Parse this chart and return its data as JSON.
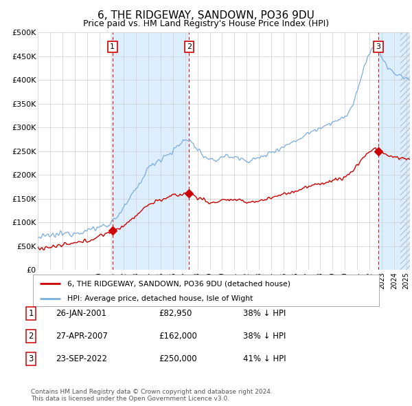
{
  "title": "6, THE RIDGEWAY, SANDOWN, PO36 9DU",
  "subtitle": "Price paid vs. HM Land Registry's House Price Index (HPI)",
  "ylabel_ticks": [
    "£0",
    "£50K",
    "£100K",
    "£150K",
    "£200K",
    "£250K",
    "£300K",
    "£350K",
    "£400K",
    "£450K",
    "£500K"
  ],
  "ytick_values": [
    0,
    50000,
    100000,
    150000,
    200000,
    250000,
    300000,
    350000,
    400000,
    450000,
    500000
  ],
  "ylim": [
    0,
    500000
  ],
  "xlim_start": 1995.0,
  "xlim_end": 2025.3,
  "xtick_years": [
    1995,
    1996,
    1997,
    1998,
    1999,
    2000,
    2001,
    2002,
    2003,
    2004,
    2005,
    2006,
    2007,
    2008,
    2009,
    2010,
    2011,
    2012,
    2013,
    2014,
    2015,
    2016,
    2017,
    2018,
    2019,
    2020,
    2021,
    2022,
    2023,
    2024,
    2025
  ],
  "sale_dates": [
    2001.07,
    2007.32,
    2022.73
  ],
  "sale_prices": [
    82950,
    162000,
    250000
  ],
  "sale_labels": [
    "1",
    "2",
    "3"
  ],
  "red_line_color": "#cc0000",
  "blue_line_color": "#7aade0",
  "shade_color": "#ddeeff",
  "annotation_box_color": "#cc0000",
  "dashed_line_color": "#cc0000",
  "background_color": "#ffffff",
  "grid_color": "#cccccc",
  "legend_label_red": "6, THE RIDGEWAY, SANDOWN, PO36 9DU (detached house)",
  "legend_label_blue": "HPI: Average price, detached house, Isle of Wight",
  "table_data": [
    {
      "num": "1",
      "date": "26-JAN-2001",
      "price": "£82,950",
      "hpi": "38% ↓ HPI"
    },
    {
      "num": "2",
      "date": "27-APR-2007",
      "price": "£162,000",
      "hpi": "38% ↓ HPI"
    },
    {
      "num": "3",
      "date": "23-SEP-2022",
      "price": "£250,000",
      "hpi": "41% ↓ HPI"
    }
  ],
  "footer": "Contains HM Land Registry data © Crown copyright and database right 2024.\nThis data is licensed under the Open Government Licence v3.0.",
  "hatch_region_start": 2024.5,
  "hatch_region_end": 2025.3
}
